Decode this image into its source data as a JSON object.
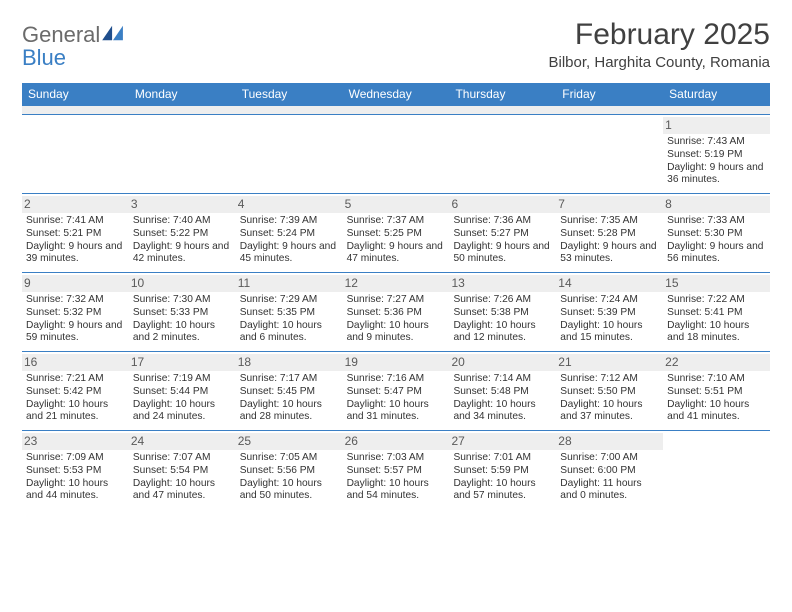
{
  "brand": {
    "text1": "General",
    "text2": "Blue"
  },
  "title": "February 2025",
  "location": "Bilbor, Harghita County, Romania",
  "colors": {
    "header_bg": "#3a7fc4",
    "header_text": "#ffffff",
    "daynum_bg": "#eeeeee",
    "text": "#333333",
    "divider": "#3a7fc4"
  },
  "weekdays": [
    "Sunday",
    "Monday",
    "Tuesday",
    "Wednesday",
    "Thursday",
    "Friday",
    "Saturday"
  ],
  "weeks": [
    [
      {
        "n": "",
        "sunrise": "",
        "sunset": "",
        "daylight": ""
      },
      {
        "n": "",
        "sunrise": "",
        "sunset": "",
        "daylight": ""
      },
      {
        "n": "",
        "sunrise": "",
        "sunset": "",
        "daylight": ""
      },
      {
        "n": "",
        "sunrise": "",
        "sunset": "",
        "daylight": ""
      },
      {
        "n": "",
        "sunrise": "",
        "sunset": "",
        "daylight": ""
      },
      {
        "n": "",
        "sunrise": "",
        "sunset": "",
        "daylight": ""
      },
      {
        "n": "1",
        "sunrise": "Sunrise: 7:43 AM",
        "sunset": "Sunset: 5:19 PM",
        "daylight": "Daylight: 9 hours and 36 minutes."
      }
    ],
    [
      {
        "n": "2",
        "sunrise": "Sunrise: 7:41 AM",
        "sunset": "Sunset: 5:21 PM",
        "daylight": "Daylight: 9 hours and 39 minutes."
      },
      {
        "n": "3",
        "sunrise": "Sunrise: 7:40 AM",
        "sunset": "Sunset: 5:22 PM",
        "daylight": "Daylight: 9 hours and 42 minutes."
      },
      {
        "n": "4",
        "sunrise": "Sunrise: 7:39 AM",
        "sunset": "Sunset: 5:24 PM",
        "daylight": "Daylight: 9 hours and 45 minutes."
      },
      {
        "n": "5",
        "sunrise": "Sunrise: 7:37 AM",
        "sunset": "Sunset: 5:25 PM",
        "daylight": "Daylight: 9 hours and 47 minutes."
      },
      {
        "n": "6",
        "sunrise": "Sunrise: 7:36 AM",
        "sunset": "Sunset: 5:27 PM",
        "daylight": "Daylight: 9 hours and 50 minutes."
      },
      {
        "n": "7",
        "sunrise": "Sunrise: 7:35 AM",
        "sunset": "Sunset: 5:28 PM",
        "daylight": "Daylight: 9 hours and 53 minutes."
      },
      {
        "n": "8",
        "sunrise": "Sunrise: 7:33 AM",
        "sunset": "Sunset: 5:30 PM",
        "daylight": "Daylight: 9 hours and 56 minutes."
      }
    ],
    [
      {
        "n": "9",
        "sunrise": "Sunrise: 7:32 AM",
        "sunset": "Sunset: 5:32 PM",
        "daylight": "Daylight: 9 hours and 59 minutes."
      },
      {
        "n": "10",
        "sunrise": "Sunrise: 7:30 AM",
        "sunset": "Sunset: 5:33 PM",
        "daylight": "Daylight: 10 hours and 2 minutes."
      },
      {
        "n": "11",
        "sunrise": "Sunrise: 7:29 AM",
        "sunset": "Sunset: 5:35 PM",
        "daylight": "Daylight: 10 hours and 6 minutes."
      },
      {
        "n": "12",
        "sunrise": "Sunrise: 7:27 AM",
        "sunset": "Sunset: 5:36 PM",
        "daylight": "Daylight: 10 hours and 9 minutes."
      },
      {
        "n": "13",
        "sunrise": "Sunrise: 7:26 AM",
        "sunset": "Sunset: 5:38 PM",
        "daylight": "Daylight: 10 hours and 12 minutes."
      },
      {
        "n": "14",
        "sunrise": "Sunrise: 7:24 AM",
        "sunset": "Sunset: 5:39 PM",
        "daylight": "Daylight: 10 hours and 15 minutes."
      },
      {
        "n": "15",
        "sunrise": "Sunrise: 7:22 AM",
        "sunset": "Sunset: 5:41 PM",
        "daylight": "Daylight: 10 hours and 18 minutes."
      }
    ],
    [
      {
        "n": "16",
        "sunrise": "Sunrise: 7:21 AM",
        "sunset": "Sunset: 5:42 PM",
        "daylight": "Daylight: 10 hours and 21 minutes."
      },
      {
        "n": "17",
        "sunrise": "Sunrise: 7:19 AM",
        "sunset": "Sunset: 5:44 PM",
        "daylight": "Daylight: 10 hours and 24 minutes."
      },
      {
        "n": "18",
        "sunrise": "Sunrise: 7:17 AM",
        "sunset": "Sunset: 5:45 PM",
        "daylight": "Daylight: 10 hours and 28 minutes."
      },
      {
        "n": "19",
        "sunrise": "Sunrise: 7:16 AM",
        "sunset": "Sunset: 5:47 PM",
        "daylight": "Daylight: 10 hours and 31 minutes."
      },
      {
        "n": "20",
        "sunrise": "Sunrise: 7:14 AM",
        "sunset": "Sunset: 5:48 PM",
        "daylight": "Daylight: 10 hours and 34 minutes."
      },
      {
        "n": "21",
        "sunrise": "Sunrise: 7:12 AM",
        "sunset": "Sunset: 5:50 PM",
        "daylight": "Daylight: 10 hours and 37 minutes."
      },
      {
        "n": "22",
        "sunrise": "Sunrise: 7:10 AM",
        "sunset": "Sunset: 5:51 PM",
        "daylight": "Daylight: 10 hours and 41 minutes."
      }
    ],
    [
      {
        "n": "23",
        "sunrise": "Sunrise: 7:09 AM",
        "sunset": "Sunset: 5:53 PM",
        "daylight": "Daylight: 10 hours and 44 minutes."
      },
      {
        "n": "24",
        "sunrise": "Sunrise: 7:07 AM",
        "sunset": "Sunset: 5:54 PM",
        "daylight": "Daylight: 10 hours and 47 minutes."
      },
      {
        "n": "25",
        "sunrise": "Sunrise: 7:05 AM",
        "sunset": "Sunset: 5:56 PM",
        "daylight": "Daylight: 10 hours and 50 minutes."
      },
      {
        "n": "26",
        "sunrise": "Sunrise: 7:03 AM",
        "sunset": "Sunset: 5:57 PM",
        "daylight": "Daylight: 10 hours and 54 minutes."
      },
      {
        "n": "27",
        "sunrise": "Sunrise: 7:01 AM",
        "sunset": "Sunset: 5:59 PM",
        "daylight": "Daylight: 10 hours and 57 minutes."
      },
      {
        "n": "28",
        "sunrise": "Sunrise: 7:00 AM",
        "sunset": "Sunset: 6:00 PM",
        "daylight": "Daylight: 11 hours and 0 minutes."
      },
      {
        "n": "",
        "sunrise": "",
        "sunset": "",
        "daylight": ""
      }
    ]
  ]
}
